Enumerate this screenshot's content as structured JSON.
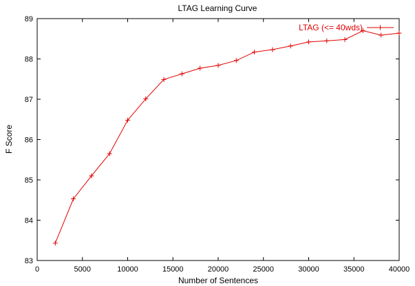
{
  "chart_data": {
    "type": "line",
    "title": "LTAG Learning Curve",
    "xlabel": "Number of Sentences",
    "ylabel": "F Score",
    "xlim": [
      0,
      40000
    ],
    "ylim": [
      83,
      89
    ],
    "xticks": [
      0,
      5000,
      10000,
      15000,
      20000,
      25000,
      30000,
      35000,
      40000
    ],
    "yticks": [
      83,
      84,
      85,
      86,
      87,
      88,
      89
    ],
    "grid": false,
    "legend_position": "top-right",
    "series": [
      {
        "name": "LTAG (<= 40wds)",
        "color": "#e00000",
        "marker": "plus",
        "x": [
          2000,
          4000,
          6000,
          8000,
          10000,
          12000,
          14000,
          16000,
          18000,
          20000,
          22000,
          24000,
          26000,
          28000,
          30000,
          32000,
          34000,
          36000,
          38000,
          40000
        ],
        "y": [
          83.43,
          84.53,
          85.1,
          85.65,
          86.48,
          87.01,
          87.49,
          87.63,
          87.77,
          87.84,
          87.96,
          88.17,
          88.23,
          88.32,
          88.42,
          88.45,
          88.48,
          88.7,
          88.59,
          88.64
        ]
      }
    ]
  }
}
